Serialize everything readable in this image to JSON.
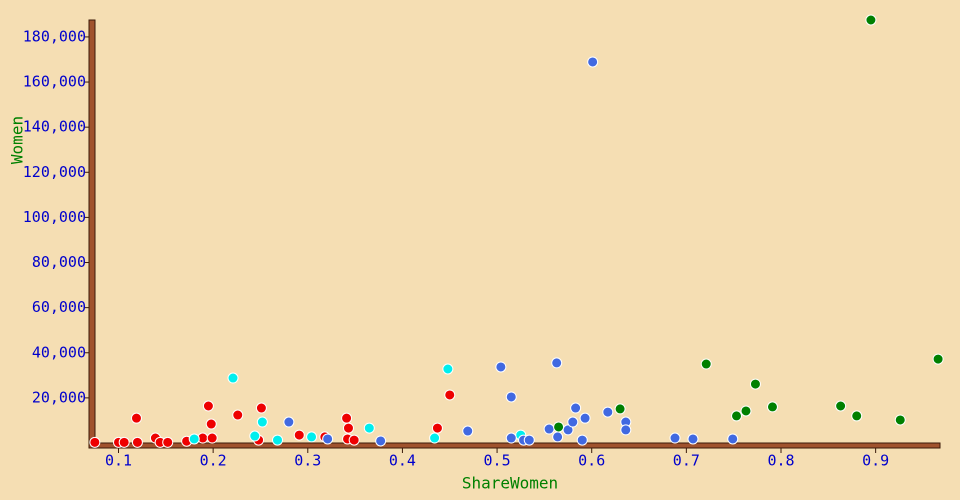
{
  "chart_data": {
    "type": "scatter",
    "xlabel": "ShareWomen",
    "ylabel": "Women",
    "xlim": [
      0.072,
      0.968
    ],
    "ylim": [
      0,
      187500
    ],
    "xticks": [
      0.1,
      0.2,
      0.3,
      0.4,
      0.5,
      0.6,
      0.7,
      0.8,
      0.9
    ],
    "yticks": [
      {
        "value": 20000,
        "label": "20,000"
      },
      {
        "value": 40000,
        "label": "40,000"
      },
      {
        "value": 60000,
        "label": "60,000"
      },
      {
        "value": 80000,
        "label": "80,000"
      },
      {
        "value": 100000,
        "label": "100,000"
      },
      {
        "value": 120000,
        "label": "120,000"
      },
      {
        "value": 140000,
        "label": "140,000"
      },
      {
        "value": 160000,
        "label": "160,000"
      },
      {
        "value": 180000,
        "label": "180,000"
      }
    ],
    "series": [
      {
        "color": "#ee0000",
        "x": [
          0.075,
          0.1,
          0.106,
          0.119,
          0.12,
          0.139,
          0.144,
          0.152,
          0.172,
          0.189,
          0.195,
          0.198,
          0.199,
          0.226,
          0.248,
          0.251,
          0.291,
          0.318,
          0.341,
          0.343,
          0.342,
          0.349,
          0.437,
          0.45
        ],
        "values": [
          300,
          300,
          300,
          11000,
          300,
          2200,
          300,
          300,
          800,
          2200,
          16400,
          8400,
          2200,
          12400,
          1300,
          15500,
          3500,
          2700,
          11000,
          6600,
          1800,
          1300,
          6600,
          21300
        ]
      },
      {
        "color": "#00eeee",
        "x": [
          0.18,
          0.221,
          0.244,
          0.252,
          0.268,
          0.304,
          0.365,
          0.434,
          0.448,
          0.525
        ],
        "values": [
          1800,
          28800,
          3100,
          9300,
          1300,
          2700,
          6600,
          2200,
          32800,
          3500
        ]
      },
      {
        "color": "#4169e1",
        "x": [
          0.28,
          0.321,
          0.377,
          0.469,
          0.504,
          0.515,
          0.515,
          0.528,
          0.534,
          0.555,
          0.563,
          0.564,
          0.575,
          0.58,
          0.583,
          0.59,
          0.593,
          0.601,
          0.617,
          0.636,
          0.636,
          0.688,
          0.707,
          0.749
        ],
        "values": [
          9300,
          1800,
          900,
          5300,
          33700,
          20400,
          2200,
          1300,
          1300,
          6200,
          35500,
          2700,
          5800,
          9300,
          15500,
          1300,
          11000,
          168900,
          13700,
          9300,
          5800,
          2200,
          1800,
          1800
        ]
      },
      {
        "color": "#008000",
        "x": [
          0.565,
          0.63,
          0.721,
          0.753,
          0.763,
          0.773,
          0.791,
          0.863,
          0.88,
          0.895,
          0.926,
          0.966
        ],
        "values": [
          7100,
          15100,
          35000,
          12000,
          14200,
          26100,
          16000,
          16400,
          12000,
          187500,
          10200,
          37200
        ]
      }
    ]
  }
}
